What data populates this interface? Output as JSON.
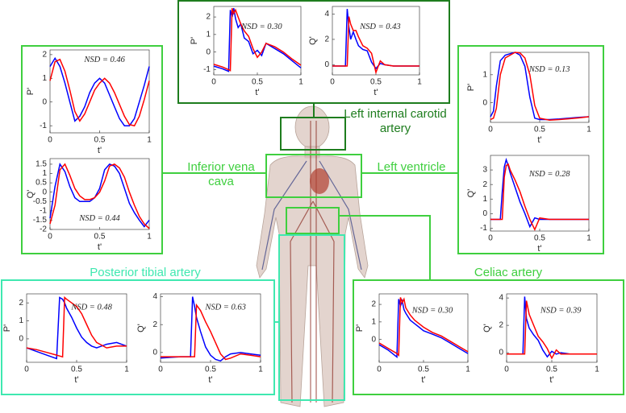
{
  "chart_data": [
    {
      "type": "line",
      "xlabel": "t'",
      "ylabel": "P'",
      "annotation": "NSD = 0.30",
      "xlim": [
        0,
        1
      ],
      "ylim": [
        -1.3,
        2.6
      ],
      "xticks": [
        0,
        0.5,
        1
      ],
      "yticks": [
        -1,
        0,
        1,
        2
      ],
      "x": [
        0,
        0.1,
        0.17,
        0.19,
        0.21,
        0.23,
        0.25,
        0.28,
        0.31,
        0.35,
        0.4,
        0.45,
        0.5,
        0.55,
        0.6,
        0.7,
        0.8,
        0.9,
        1
      ],
      "series": [
        {
          "color": "#0000ff",
          "values": [
            -0.8,
            -0.95,
            -1.1,
            2.4,
            2.0,
            2.5,
            1.9,
            1.4,
            1.6,
            0.8,
            0.6,
            -0.1,
            0.1,
            -0.2,
            0.5,
            0.2,
            -0.1,
            -0.5,
            -0.9
          ]
        },
        {
          "color": "#ff0000",
          "values": [
            -0.7,
            -0.85,
            -1.0,
            -1.05,
            2.5,
            2.2,
            2.4,
            2.0,
            1.6,
            1.2,
            0.9,
            0.2,
            -0.3,
            0.0,
            0.5,
            0.3,
            0.0,
            -0.4,
            -0.75
          ]
        }
      ]
    },
    {
      "type": "line",
      "xlabel": "t'",
      "ylabel": "Q'",
      "annotation": "NSD = 0.43",
      "xlim": [
        0,
        1
      ],
      "ylim": [
        -0.8,
        4.6
      ],
      "xticks": [
        0,
        0.5,
        1
      ],
      "yticks": [
        0,
        2,
        4
      ],
      "x": [
        0,
        0.1,
        0.15,
        0.17,
        0.19,
        0.21,
        0.24,
        0.27,
        0.3,
        0.35,
        0.4,
        0.45,
        0.5,
        0.55,
        0.6,
        0.7,
        0.8,
        0.9,
        1
      ],
      "series": [
        {
          "color": "#0000ff",
          "values": [
            -0.1,
            -0.1,
            -0.1,
            4.4,
            3.0,
            2.0,
            2.6,
            2.0,
            1.5,
            1.2,
            1.1,
            0.2,
            -0.3,
            0.1,
            0.0,
            -0.1,
            -0.1,
            -0.1,
            -0.1
          ]
        },
        {
          "color": "#ff0000",
          "values": [
            -0.1,
            -0.1,
            -0.1,
            -0.1,
            3.8,
            3.2,
            2.7,
            2.7,
            2.2,
            1.5,
            1.3,
            0.9,
            -0.6,
            0.3,
            0.0,
            -0.1,
            -0.1,
            -0.1,
            -0.1
          ]
        }
      ]
    },
    {
      "type": "line",
      "xlabel": "t'",
      "ylabel": "P'",
      "annotation": "NSD = 0.46",
      "xlim": [
        0,
        1
      ],
      "ylim": [
        -1.3,
        2.2
      ],
      "xticks": [
        0,
        0.5,
        1
      ],
      "yticks": [
        -1,
        0,
        1,
        2
      ],
      "x": [
        0,
        0.05,
        0.1,
        0.15,
        0.2,
        0.25,
        0.3,
        0.35,
        0.4,
        0.45,
        0.5,
        0.55,
        0.6,
        0.65,
        0.7,
        0.75,
        0.8,
        0.85,
        0.9,
        0.95,
        1
      ],
      "series": [
        {
          "color": "#0000ff",
          "values": [
            1.5,
            1.85,
            1.5,
            0.8,
            0.0,
            -0.8,
            -0.6,
            -0.2,
            0.4,
            0.8,
            1.0,
            0.8,
            0.3,
            -0.2,
            -0.7,
            -1.0,
            -1.0,
            -0.7,
            0.0,
            0.7,
            1.5
          ]
        },
        {
          "color": "#ff0000",
          "values": [
            0.9,
            1.7,
            1.8,
            1.3,
            0.5,
            -0.4,
            -0.8,
            -0.5,
            0.0,
            0.5,
            0.8,
            1.0,
            0.8,
            0.4,
            -0.1,
            -0.6,
            -0.95,
            -1.0,
            -0.6,
            0.1,
            0.9
          ]
        }
      ]
    },
    {
      "type": "line",
      "xlabel": "t'",
      "ylabel": "Q'",
      "annotation": "NSD = 0.44",
      "xlim": [
        0,
        1
      ],
      "ylim": [
        -2,
        1.8
      ],
      "xticks": [
        0,
        0.5,
        1
      ],
      "yticks": [
        -2,
        -1.5,
        -1,
        -0.5,
        0,
        0.5,
        1,
        1.5
      ],
      "x": [
        0,
        0.05,
        0.1,
        0.15,
        0.2,
        0.25,
        0.3,
        0.35,
        0.4,
        0.45,
        0.5,
        0.55,
        0.6,
        0.65,
        0.7,
        0.75,
        0.8,
        0.85,
        0.9,
        0.95,
        1
      ],
      "series": [
        {
          "color": "#0000ff",
          "values": [
            -1.4,
            0.3,
            1.5,
            1.1,
            0.3,
            -0.3,
            -0.5,
            -0.5,
            -0.5,
            -0.3,
            0.2,
            1.2,
            1.5,
            1.4,
            1.0,
            0.2,
            -0.6,
            -1.1,
            -1.5,
            -1.85,
            -1.5
          ]
        },
        {
          "color": "#ff0000",
          "values": [
            -1.7,
            -0.7,
            1.2,
            1.5,
            0.9,
            0.2,
            -0.2,
            -0.4,
            -0.4,
            -0.3,
            0.0,
            0.6,
            1.4,
            1.5,
            1.3,
            0.8,
            0.0,
            -0.7,
            -1.3,
            -1.7,
            -1.95
          ]
        }
      ]
    },
    {
      "type": "line",
      "xlabel": "t'",
      "ylabel": "P'",
      "annotation": "NSD = 0.13",
      "xlim": [
        0,
        1
      ],
      "ylim": [
        -0.7,
        1.8
      ],
      "xticks": [
        0,
        0.5,
        1
      ],
      "yticks": [
        0,
        1
      ],
      "x": [
        0,
        0.03,
        0.06,
        0.1,
        0.15,
        0.2,
        0.25,
        0.3,
        0.35,
        0.4,
        0.45,
        0.5,
        0.6,
        0.7,
        0.8,
        0.9,
        1
      ],
      "series": [
        {
          "color": "#0000ff",
          "values": [
            -0.5,
            -0.3,
            0.6,
            1.5,
            1.7,
            1.75,
            1.8,
            1.7,
            1.3,
            0.2,
            -0.55,
            -0.6,
            -0.6,
            -0.58,
            -0.55,
            -0.52,
            -0.5
          ]
        },
        {
          "color": "#ff0000",
          "values": [
            -0.6,
            -0.55,
            -0.2,
            1.0,
            1.6,
            1.7,
            1.8,
            1.78,
            1.6,
            1.0,
            -0.1,
            -0.55,
            -0.62,
            -0.6,
            -0.57,
            -0.54,
            -0.5
          ]
        }
      ]
    },
    {
      "type": "line",
      "xlabel": "t'",
      "ylabel": "Q'",
      "annotation": "NSD = 0.28",
      "xlim": [
        0,
        1
      ],
      "ylim": [
        -1.2,
        4
      ],
      "xticks": [
        0,
        0.5,
        1
      ],
      "yticks": [
        -1,
        0,
        1,
        2,
        3
      ],
      "x": [
        0,
        0.1,
        0.12,
        0.14,
        0.16,
        0.18,
        0.2,
        0.25,
        0.3,
        0.35,
        0.4,
        0.45,
        0.5,
        0.6,
        0.8,
        1
      ],
      "series": [
        {
          "color": "#0000ff",
          "values": [
            -0.4,
            -0.4,
            1.5,
            3.2,
            3.7,
            3.3,
            2.8,
            1.8,
            0.8,
            0.0,
            -0.9,
            -0.3,
            -0.4,
            -0.4,
            -0.4,
            -0.4
          ]
        },
        {
          "color": "#ff0000",
          "values": [
            -0.4,
            -0.4,
            -0.4,
            2.5,
            3.3,
            3.4,
            3.0,
            2.3,
            1.5,
            0.5,
            -0.4,
            -1.1,
            -0.3,
            -0.4,
            -0.4,
            -0.4
          ]
        }
      ]
    },
    {
      "type": "line",
      "xlabel": "t'",
      "ylabel": "P'",
      "annotation": "NSD = 0.48",
      "xlim": [
        0,
        1
      ],
      "ylim": [
        -1.3,
        2.5
      ],
      "xticks": [
        0,
        0.5,
        1
      ],
      "yticks": [
        0,
        1,
        2
      ],
      "x": [
        0,
        0.1,
        0.2,
        0.3,
        0.33,
        0.36,
        0.38,
        0.4,
        0.45,
        0.5,
        0.55,
        0.6,
        0.65,
        0.7,
        0.8,
        0.9,
        1
      ],
      "series": [
        {
          "color": "#0000ff",
          "values": [
            -0.5,
            -0.7,
            -0.9,
            -1.1,
            2.3,
            2.2,
            2.0,
            1.7,
            1.2,
            0.6,
            0.1,
            -0.2,
            -0.4,
            -0.5,
            -0.3,
            -0.2,
            -0.4
          ]
        },
        {
          "color": "#ff0000",
          "values": [
            -0.5,
            -0.6,
            -0.75,
            -0.9,
            -0.95,
            -1.0,
            2.3,
            2.2,
            2.0,
            1.8,
            1.4,
            0.8,
            0.2,
            -0.2,
            -0.5,
            -0.4,
            -0.4
          ]
        }
      ]
    },
    {
      "type": "line",
      "xlabel": "t'",
      "ylabel": "Q'",
      "annotation": "NSD = 0.63",
      "xlim": [
        0,
        1
      ],
      "ylim": [
        -0.7,
        4.2
      ],
      "xticks": [
        0,
        0.5,
        1
      ],
      "yticks": [
        0,
        2,
        4
      ],
      "x": [
        0,
        0.1,
        0.2,
        0.3,
        0.32,
        0.34,
        0.36,
        0.4,
        0.45,
        0.5,
        0.55,
        0.6,
        0.65,
        0.7,
        0.8,
        0.9,
        1
      ],
      "series": [
        {
          "color": "#0000ff",
          "values": [
            -0.4,
            -0.35,
            -0.3,
            -0.3,
            4.0,
            3.3,
            2.5,
            1.5,
            0.4,
            -0.2,
            -0.5,
            -0.6,
            -0.3,
            -0.1,
            0.0,
            -0.1,
            -0.2
          ]
        },
        {
          "color": "#ff0000",
          "values": [
            -0.3,
            -0.3,
            -0.3,
            -0.3,
            -0.3,
            -0.3,
            3.4,
            3.0,
            2.2,
            1.5,
            0.7,
            -0.1,
            -0.5,
            -0.4,
            -0.1,
            -0.2,
            -0.3
          ]
        }
      ]
    },
    {
      "type": "line",
      "xlabel": "t'",
      "ylabel": "P'",
      "annotation": "NSD = 0.30",
      "xlim": [
        0,
        1
      ],
      "ylim": [
        -1.3,
        2.6
      ],
      "xticks": [
        0,
        0.5,
        1
      ],
      "yticks": [
        0,
        1,
        2
      ],
      "x": [
        0,
        0.1,
        0.2,
        0.22,
        0.24,
        0.26,
        0.28,
        0.3,
        0.35,
        0.4,
        0.45,
        0.5,
        0.6,
        0.7,
        0.8,
        0.9,
        1
      ],
      "series": [
        {
          "color": "#0000ff",
          "values": [
            -0.3,
            -0.6,
            -1.0,
            2.3,
            1.9,
            2.2,
            1.7,
            1.5,
            1.1,
            0.9,
            0.7,
            0.5,
            0.3,
            0.1,
            -0.2,
            -0.5,
            -0.8
          ]
        },
        {
          "color": "#ff0000",
          "values": [
            -0.2,
            -0.5,
            -0.8,
            -0.9,
            2.4,
            2.1,
            2.3,
            1.8,
            1.4,
            1.1,
            0.9,
            0.7,
            0.4,
            0.2,
            -0.1,
            -0.4,
            -0.7
          ]
        }
      ]
    },
    {
      "type": "line",
      "xlabel": "t'",
      "ylabel": "Q'",
      "annotation": "NSD = 0.39",
      "xlim": [
        0,
        1
      ],
      "ylim": [
        -0.7,
        4.3
      ],
      "xticks": [
        0,
        0.5,
        1
      ],
      "yticks": [
        0,
        2,
        4
      ],
      "x": [
        0,
        0.1,
        0.18,
        0.2,
        0.22,
        0.25,
        0.3,
        0.35,
        0.4,
        0.45,
        0.5,
        0.55,
        0.6,
        0.7,
        0.8,
        0.9,
        1
      ],
      "series": [
        {
          "color": "#0000ff",
          "values": [
            -0.1,
            -0.1,
            -0.1,
            4.1,
            2.5,
            1.8,
            1.3,
            0.9,
            0.2,
            -0.3,
            0.1,
            -0.1,
            0.0,
            -0.1,
            -0.1,
            -0.1,
            -0.1
          ]
        },
        {
          "color": "#ff0000",
          "values": [
            -0.1,
            -0.1,
            -0.1,
            -0.1,
            3.8,
            2.8,
            2.0,
            1.2,
            0.8,
            0.3,
            -0.4,
            0.2,
            -0.1,
            -0.1,
            -0.1,
            -0.1,
            -0.1
          ]
        }
      ]
    }
  ],
  "regions": [
    "Left internal carotid artery",
    "Inferior vena cava",
    "Left ventricle",
    "Posterior tibial artery",
    "Celiac artery"
  ]
}
